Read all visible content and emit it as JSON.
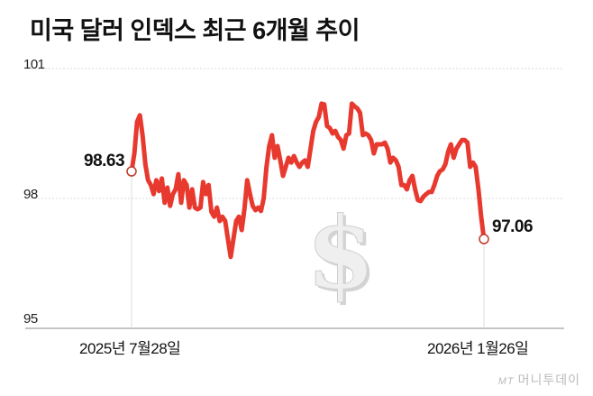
{
  "title": "미국 달러 인덱스 최근 6개월 추이",
  "credit": {
    "logo": "MT",
    "brand": "머니투데이"
  },
  "colors": {
    "line": "#e8392f",
    "grid": "#d9d9d9",
    "marker_stroke": "#c0392b",
    "watermark": "#e2e2e2"
  },
  "chart_data": {
    "type": "line",
    "title": "미국 달러 인덱스 최근 6개월 추이",
    "xlabel": "",
    "ylabel": "",
    "ylim": [
      95,
      101
    ],
    "yticks": [
      95,
      98,
      101
    ],
    "ytick_labels": [
      "95",
      "98",
      "101"
    ],
    "x_tick_labels": [
      "2025년 7월28일",
      "2026년 1월26일"
    ],
    "grid": "horizontal dotted",
    "legend": "none",
    "annotations": [
      {
        "label": "98.63",
        "position": "start",
        "value": 98.63
      },
      {
        "label": "97.06",
        "position": "end",
        "value": 97.06
      }
    ],
    "series": [
      {
        "name": "달러 인덱스",
        "values": [
          98.63,
          99.04,
          99.77,
          99.92,
          99.46,
          98.79,
          98.42,
          98.31,
          98.1,
          98.42,
          98.17,
          98.46,
          97.9,
          98.25,
          97.83,
          98.1,
          98.21,
          98.56,
          97.9,
          98.42,
          98.31,
          97.79,
          98.21,
          97.79,
          97.75,
          97.79,
          98.38,
          98.1,
          98.31,
          97.69,
          97.58,
          97.79,
          97.48,
          97.58,
          97.48,
          97.06,
          96.65,
          97.06,
          97.48,
          97.58,
          97.27,
          97.75,
          98.42,
          98.1,
          97.83,
          97.73,
          97.79,
          97.71,
          98.0,
          98.73,
          99.21,
          99.46,
          98.94,
          99.21,
          98.88,
          98.52,
          98.73,
          98.94,
          98.83,
          98.98,
          98.83,
          98.73,
          98.83,
          98.88,
          98.73,
          99.15,
          99.56,
          99.77,
          99.88,
          100.19,
          100.17,
          99.67,
          99.63,
          99.5,
          99.56,
          99.42,
          99.35,
          99.15,
          99.46,
          99.5,
          100.19,
          100.13,
          100.08,
          99.98,
          99.46,
          99.5,
          99.46,
          99.35,
          99.04,
          99.25,
          99.25,
          99.25,
          99.29,
          99.15,
          98.83,
          98.94,
          98.88,
          98.73,
          98.31,
          98.31,
          98.21,
          98.42,
          98.52,
          98.21,
          97.96,
          97.94,
          98.04,
          98.1,
          98.15,
          98.15,
          98.31,
          98.52,
          98.63,
          98.67,
          98.79,
          99.08,
          99.25,
          98.94,
          99.15,
          99.25,
          99.35,
          99.35,
          99.29,
          98.73,
          98.83,
          98.73,
          98.21,
          97.58,
          97.06
        ]
      }
    ]
  }
}
